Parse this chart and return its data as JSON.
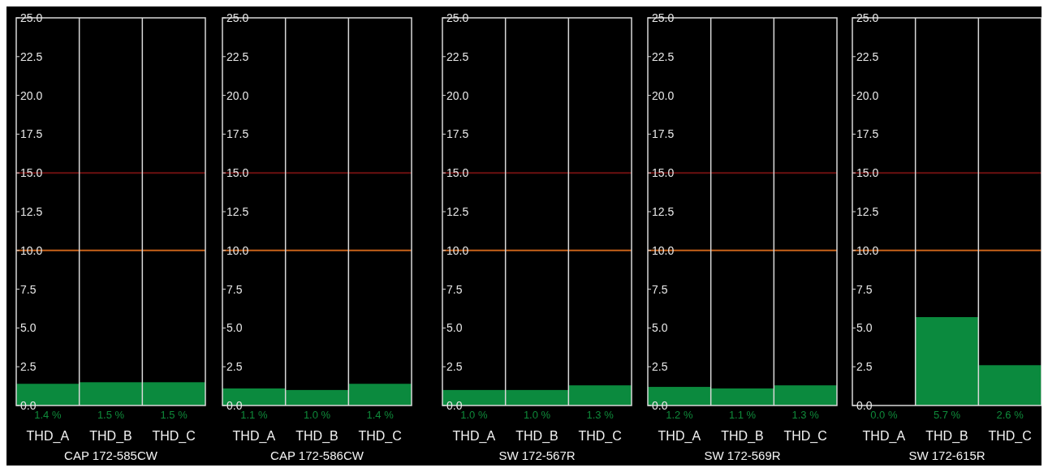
{
  "chart_data": [
    {
      "type": "bar",
      "title": "CAP 172-585CW",
      "categories": [
        "THD_A",
        "THD_B",
        "THD_C"
      ],
      "values": [
        1.4,
        1.5,
        1.5
      ],
      "value_labels": [
        "1.4 %",
        "1.5 %",
        "1.5 %"
      ],
      "color": "#0b8a3e",
      "ylim": [
        0,
        25
      ],
      "yticks": [
        {
          "value": 0,
          "label": "0.0"
        },
        {
          "value": 2.5,
          "label": "2.5"
        },
        {
          "value": 5,
          "label": "5.0"
        },
        {
          "value": 7.5,
          "label": "7.5"
        },
        {
          "value": 10,
          "label": "10.0"
        },
        {
          "value": 12.5,
          "label": "12.5"
        },
        {
          "value": 15,
          "label": "15.0"
        },
        {
          "value": 17.5,
          "label": "17.5"
        },
        {
          "value": 20,
          "label": "20.0"
        },
        {
          "value": 22.5,
          "label": "22.5"
        },
        {
          "value": 25,
          "label": "25.0"
        }
      ],
      "grid": "x",
      "ref_lines": [
        {
          "axis": "y",
          "value": 15,
          "color": "#6e1010"
        },
        {
          "axis": "y",
          "value": 10,
          "color": "#c8621a"
        }
      ]
    },
    {
      "type": "bar",
      "title": "CAP 172-586CW",
      "categories": [
        "THD_A",
        "THD_B",
        "THD_C"
      ],
      "values": [
        1.1,
        1.0,
        1.4
      ],
      "value_labels": [
        "1.1 %",
        "1.0 %",
        "1.4 %"
      ],
      "color": "#0b8a3e",
      "ylim": [
        0,
        25
      ],
      "yticks": [
        {
          "value": 0,
          "label": "0.0"
        },
        {
          "value": 2.5,
          "label": "2.5"
        },
        {
          "value": 5,
          "label": "5.0"
        },
        {
          "value": 7.5,
          "label": "7.5"
        },
        {
          "value": 10,
          "label": "10.0"
        },
        {
          "value": 12.5,
          "label": "12.5"
        },
        {
          "value": 15,
          "label": "15.0"
        },
        {
          "value": 17.5,
          "label": "17.5"
        },
        {
          "value": 20,
          "label": "20.0"
        },
        {
          "value": 22.5,
          "label": "22.5"
        },
        {
          "value": 25,
          "label": "25.0"
        }
      ],
      "grid": "x",
      "ref_lines": [
        {
          "axis": "y",
          "value": 15,
          "color": "#6e1010"
        },
        {
          "axis": "y",
          "value": 10,
          "color": "#c8621a"
        }
      ]
    },
    {
      "type": "bar",
      "title": "SW 172-567R",
      "categories": [
        "THD_A",
        "THD_B",
        "THD_C"
      ],
      "values": [
        1.0,
        1.0,
        1.3
      ],
      "value_labels": [
        "1.0 %",
        "1.0 %",
        "1.3 %"
      ],
      "color": "#0b8a3e",
      "ylim": [
        0,
        25
      ],
      "yticks": [
        {
          "value": 0,
          "label": "0.0"
        },
        {
          "value": 2.5,
          "label": "2.5"
        },
        {
          "value": 5,
          "label": "5.0"
        },
        {
          "value": 7.5,
          "label": "7.5"
        },
        {
          "value": 10,
          "label": "10.0"
        },
        {
          "value": 12.5,
          "label": "12.5"
        },
        {
          "value": 15,
          "label": "15.0"
        },
        {
          "value": 17.5,
          "label": "17.5"
        },
        {
          "value": 20,
          "label": "20.0"
        },
        {
          "value": 22.5,
          "label": "22.5"
        },
        {
          "value": 25,
          "label": "25.0"
        }
      ],
      "grid": "x",
      "ref_lines": [
        {
          "axis": "y",
          "value": 15,
          "color": "#6e1010"
        },
        {
          "axis": "y",
          "value": 10,
          "color": "#c8621a"
        }
      ]
    },
    {
      "type": "bar",
      "title": "SW 172-569R",
      "categories": [
        "THD_A",
        "THD_B",
        "THD_C"
      ],
      "values": [
        1.2,
        1.1,
        1.3
      ],
      "value_labels": [
        "1.2 %",
        "1.1 %",
        "1.3 %"
      ],
      "color": "#0b8a3e",
      "ylim": [
        0,
        25
      ],
      "yticks": [
        {
          "value": 0,
          "label": "0.0"
        },
        {
          "value": 2.5,
          "label": "2.5"
        },
        {
          "value": 5,
          "label": "5.0"
        },
        {
          "value": 7.5,
          "label": "7.5"
        },
        {
          "value": 10,
          "label": "10.0"
        },
        {
          "value": 12.5,
          "label": "12.5"
        },
        {
          "value": 15,
          "label": "15.0"
        },
        {
          "value": 17.5,
          "label": "17.5"
        },
        {
          "value": 20,
          "label": "20.0"
        },
        {
          "value": 22.5,
          "label": "22.5"
        },
        {
          "value": 25,
          "label": "25.0"
        }
      ],
      "grid": "x",
      "ref_lines": [
        {
          "axis": "y",
          "value": 15,
          "color": "#6e1010"
        },
        {
          "axis": "y",
          "value": 10,
          "color": "#c8621a"
        }
      ]
    },
    {
      "type": "bar",
      "title": "SW 172-615R",
      "categories": [
        "THD_A",
        "THD_B",
        "THD_C"
      ],
      "values": [
        0.0,
        5.7,
        2.6
      ],
      "value_labels": [
        "0.0 %",
        "5.7 %",
        "2.6 %"
      ],
      "color": "#0b8a3e",
      "ylim": [
        0,
        25
      ],
      "yticks": [
        {
          "value": 0,
          "label": "0.0"
        },
        {
          "value": 2.5,
          "label": "2.5"
        },
        {
          "value": 5,
          "label": "5.0"
        },
        {
          "value": 7.5,
          "label": "7.5"
        },
        {
          "value": 10,
          "label": "10.0"
        },
        {
          "value": 12.5,
          "label": "12.5"
        },
        {
          "value": 15,
          "label": "15.0"
        },
        {
          "value": 17.5,
          "label": "17.5"
        },
        {
          "value": 20,
          "label": "20.0"
        },
        {
          "value": 22.5,
          "label": "22.5"
        },
        {
          "value": 25,
          "label": "25.0"
        }
      ],
      "grid": "x",
      "ref_lines": [
        {
          "axis": "y",
          "value": 15,
          "color": "#6e1010"
        },
        {
          "axis": "y",
          "value": 10,
          "color": "#c8621a"
        }
      ]
    }
  ]
}
